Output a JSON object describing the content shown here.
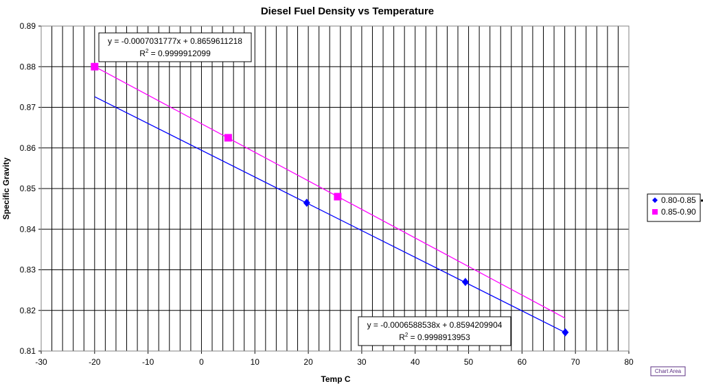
{
  "chart_data": {
    "type": "scatter",
    "title": "Diesel Fuel Density vs Temperature",
    "xlabel": "Temp C",
    "ylabel": "Specific Gravity",
    "xlim": [
      -30,
      80
    ],
    "ylim": [
      0.81,
      0.89
    ],
    "x_ticks": [
      -30,
      -20,
      -10,
      0,
      10,
      20,
      30,
      40,
      50,
      60,
      70,
      80
    ],
    "y_ticks": [
      0.81,
      0.82,
      0.83,
      0.84,
      0.85,
      0.86,
      0.87,
      0.88,
      0.89
    ],
    "grid": "on",
    "legend_position": "right",
    "series": [
      {
        "name": "0.80-0.85",
        "color": "#0000ff",
        "marker": "diamond",
        "points": [
          [
            19.7,
            0.8465
          ],
          [
            49.4,
            0.827
          ],
          [
            68.1,
            0.8146
          ]
        ],
        "trendline": {
          "slope": -0.0006588538,
          "intercept": 0.8594209904,
          "x_range": [
            -20,
            68.1
          ]
        },
        "equation": "y = -0.0006588538x + 0.8594209904",
        "r2_prefix": "R",
        "r2_sup": "2",
        "r2_value": " = 0.9998913953"
      },
      {
        "name": "0.85-0.90",
        "color": "#ff00ff",
        "marker": "square",
        "points": [
          [
            -20,
            0.88
          ],
          [
            5,
            0.8625
          ],
          [
            25.5,
            0.848
          ]
        ],
        "trendline": {
          "slope": -0.0007031777,
          "intercept": 0.8659611218,
          "x_range": [
            -20,
            68.1
          ]
        },
        "equation": "y = -0.0007031777x + 0.8659611218",
        "r2_prefix": "R",
        "r2_sup": "2",
        "r2_value": " = 0.9999912099"
      }
    ]
  },
  "chart_area_label": "Chart Area"
}
